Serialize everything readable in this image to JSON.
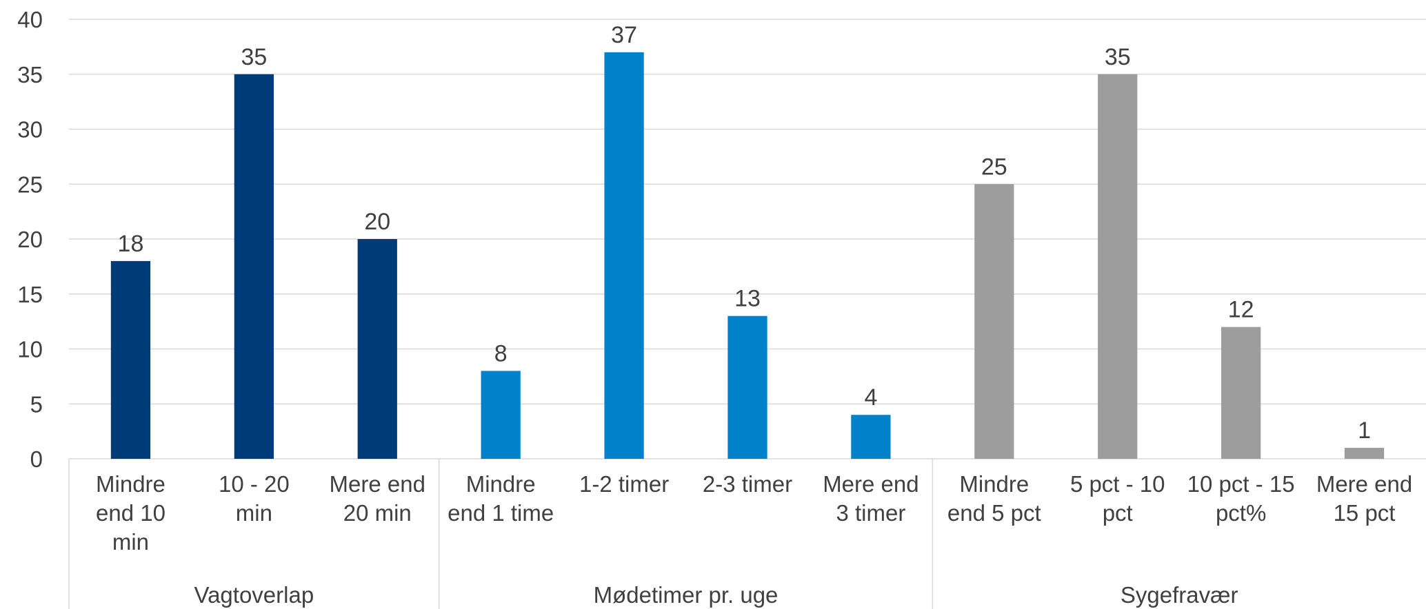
{
  "chart_data": {
    "type": "bar",
    "ylim": [
      0,
      40
    ],
    "yticks": [
      0,
      5,
      10,
      15,
      20,
      25,
      30,
      35,
      40
    ],
    "grid": true,
    "legend": "none",
    "groups": [
      {
        "label": "Vagtoverlap",
        "color": "#003b79",
        "categories": [
          {
            "label": [
              "Mindre",
              "end 10",
              "min"
            ],
            "value": 18
          },
          {
            "label": [
              "10 - 20",
              "min"
            ],
            "value": 35
          },
          {
            "label": [
              "Mere end",
              "20 min"
            ],
            "value": 20
          }
        ]
      },
      {
        "label": "Mødetimer pr. uge",
        "color": "#0081c9",
        "categories": [
          {
            "label": [
              "Mindre",
              "end 1 time"
            ],
            "value": 8
          },
          {
            "label": [
              "1-2 timer"
            ],
            "value": 37
          },
          {
            "label": [
              "2-3 timer"
            ],
            "value": 13
          },
          {
            "label": [
              "Mere end",
              "3 timer"
            ],
            "value": 4
          }
        ]
      },
      {
        "label": "Sygefravær",
        "color": "#9d9d9d",
        "categories": [
          {
            "label": [
              "Mindre",
              "end 5 pct"
            ],
            "value": 25
          },
          {
            "label": [
              "5 pct - 10",
              "pct"
            ],
            "value": 35
          },
          {
            "label": [
              "10 pct - 15",
              "pct%"
            ],
            "value": 12
          },
          {
            "label": [
              "Mere end",
              "15 pct"
            ],
            "value": 1
          }
        ]
      }
    ]
  }
}
